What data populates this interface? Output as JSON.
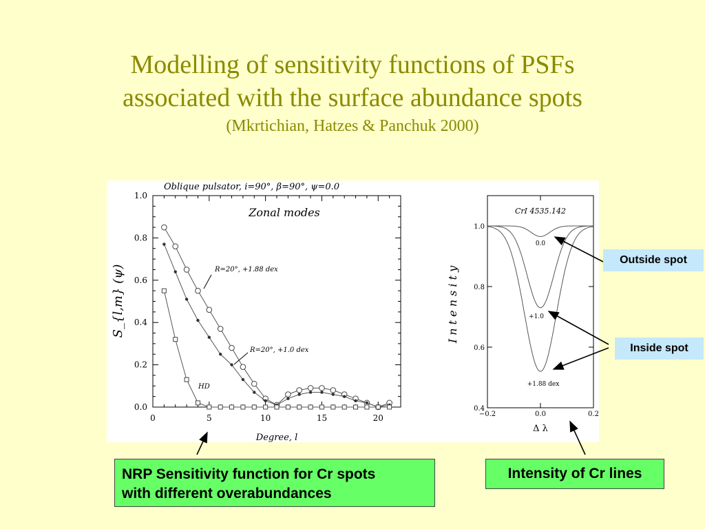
{
  "slide": {
    "title_line1": "Modelling of sensitivity functions of PSFs",
    "title_line2": "associated with the surface abundance spots",
    "subtitle": "(Mkrtichian, Hatzes & Panchuk 2000)"
  },
  "labels": {
    "outside_spot": "Outside spot",
    "inside_spot": "Inside spot",
    "nrp_line1": "NRP Sensitivity function for Cr spots",
    "nrp_line2": "with different overabundances",
    "intensity": "Intensity of Cr lines"
  },
  "colors": {
    "background": "#ffffcc",
    "title": "#8a8a00",
    "label_blue": "#c5e8fb",
    "label_green": "#66ff66"
  },
  "chart_data": [
    {
      "type": "line",
      "title": "Oblique  pulsator,   i=90°,  β=90°,  ψ=0.0",
      "annotation": "Zonal  modes",
      "xlabel": "Degree,  l",
      "ylabel": "S_{l,m} (ψ)",
      "xlim": [
        0,
        22
      ],
      "ylim": [
        0,
        1.0
      ],
      "xticks": [
        "0",
        "5",
        "10",
        "15",
        "20"
      ],
      "yticks": [
        "0.0",
        "0.2",
        "0.4",
        "0.6",
        "0.8",
        "1.0"
      ],
      "x": [
        1,
        2,
        3,
        4,
        5,
        6,
        7,
        8,
        9,
        10,
        11,
        12,
        13,
        14,
        15,
        16,
        17,
        18,
        19,
        20,
        21
      ],
      "series": [
        {
          "name": "R=20°,  +1.88  dex",
          "marker": "circle",
          "values": [
            0.85,
            0.76,
            0.65,
            0.55,
            0.46,
            0.37,
            0.28,
            0.19,
            0.11,
            0.04,
            0.01,
            0.06,
            0.08,
            0.09,
            0.09,
            0.08,
            0.06,
            0.04,
            0.02,
            0.0,
            0.02
          ]
        },
        {
          "name": "R=20°,  +1.0  dex",
          "marker": "dot",
          "values": [
            0.77,
            0.64,
            0.51,
            0.41,
            0.33,
            0.25,
            0.2,
            0.13,
            0.07,
            0.03,
            0.01,
            0.04,
            0.06,
            0.07,
            0.07,
            0.06,
            0.05,
            0.03,
            0.02,
            0.0,
            0.01
          ]
        },
        {
          "name": "HD",
          "marker": "square",
          "values": [
            0.55,
            0.32,
            0.13,
            0.02,
            0.0,
            0.0,
            0.0,
            0.0,
            0.0,
            0.0,
            0.0,
            0.0,
            0.0,
            0.0,
            0.0,
            0.0,
            0.0,
            0.0,
            0.0,
            0.0,
            0.0
          ]
        }
      ]
    },
    {
      "type": "line",
      "title": "CrI  4535.142",
      "xlabel": "Δ  λ",
      "ylabel": "I  n  t  e  n  s  i  t  y",
      "xlim": [
        -0.2,
        0.2
      ],
      "ylim": [
        0.4,
        1.0
      ],
      "xticks": [
        "−0.2",
        "0.0",
        "0.2"
      ],
      "yticks": [
        "0.4",
        "0.6",
        "0.8",
        "1.0"
      ],
      "series": [
        {
          "name": "0.0",
          "depth": 0.035,
          "width": 0.035
        },
        {
          "name": "+1.0",
          "depth": 0.27,
          "width": 0.05
        },
        {
          "name": "+1.88  dex",
          "depth": 0.48,
          "width": 0.06
        }
      ]
    }
  ]
}
